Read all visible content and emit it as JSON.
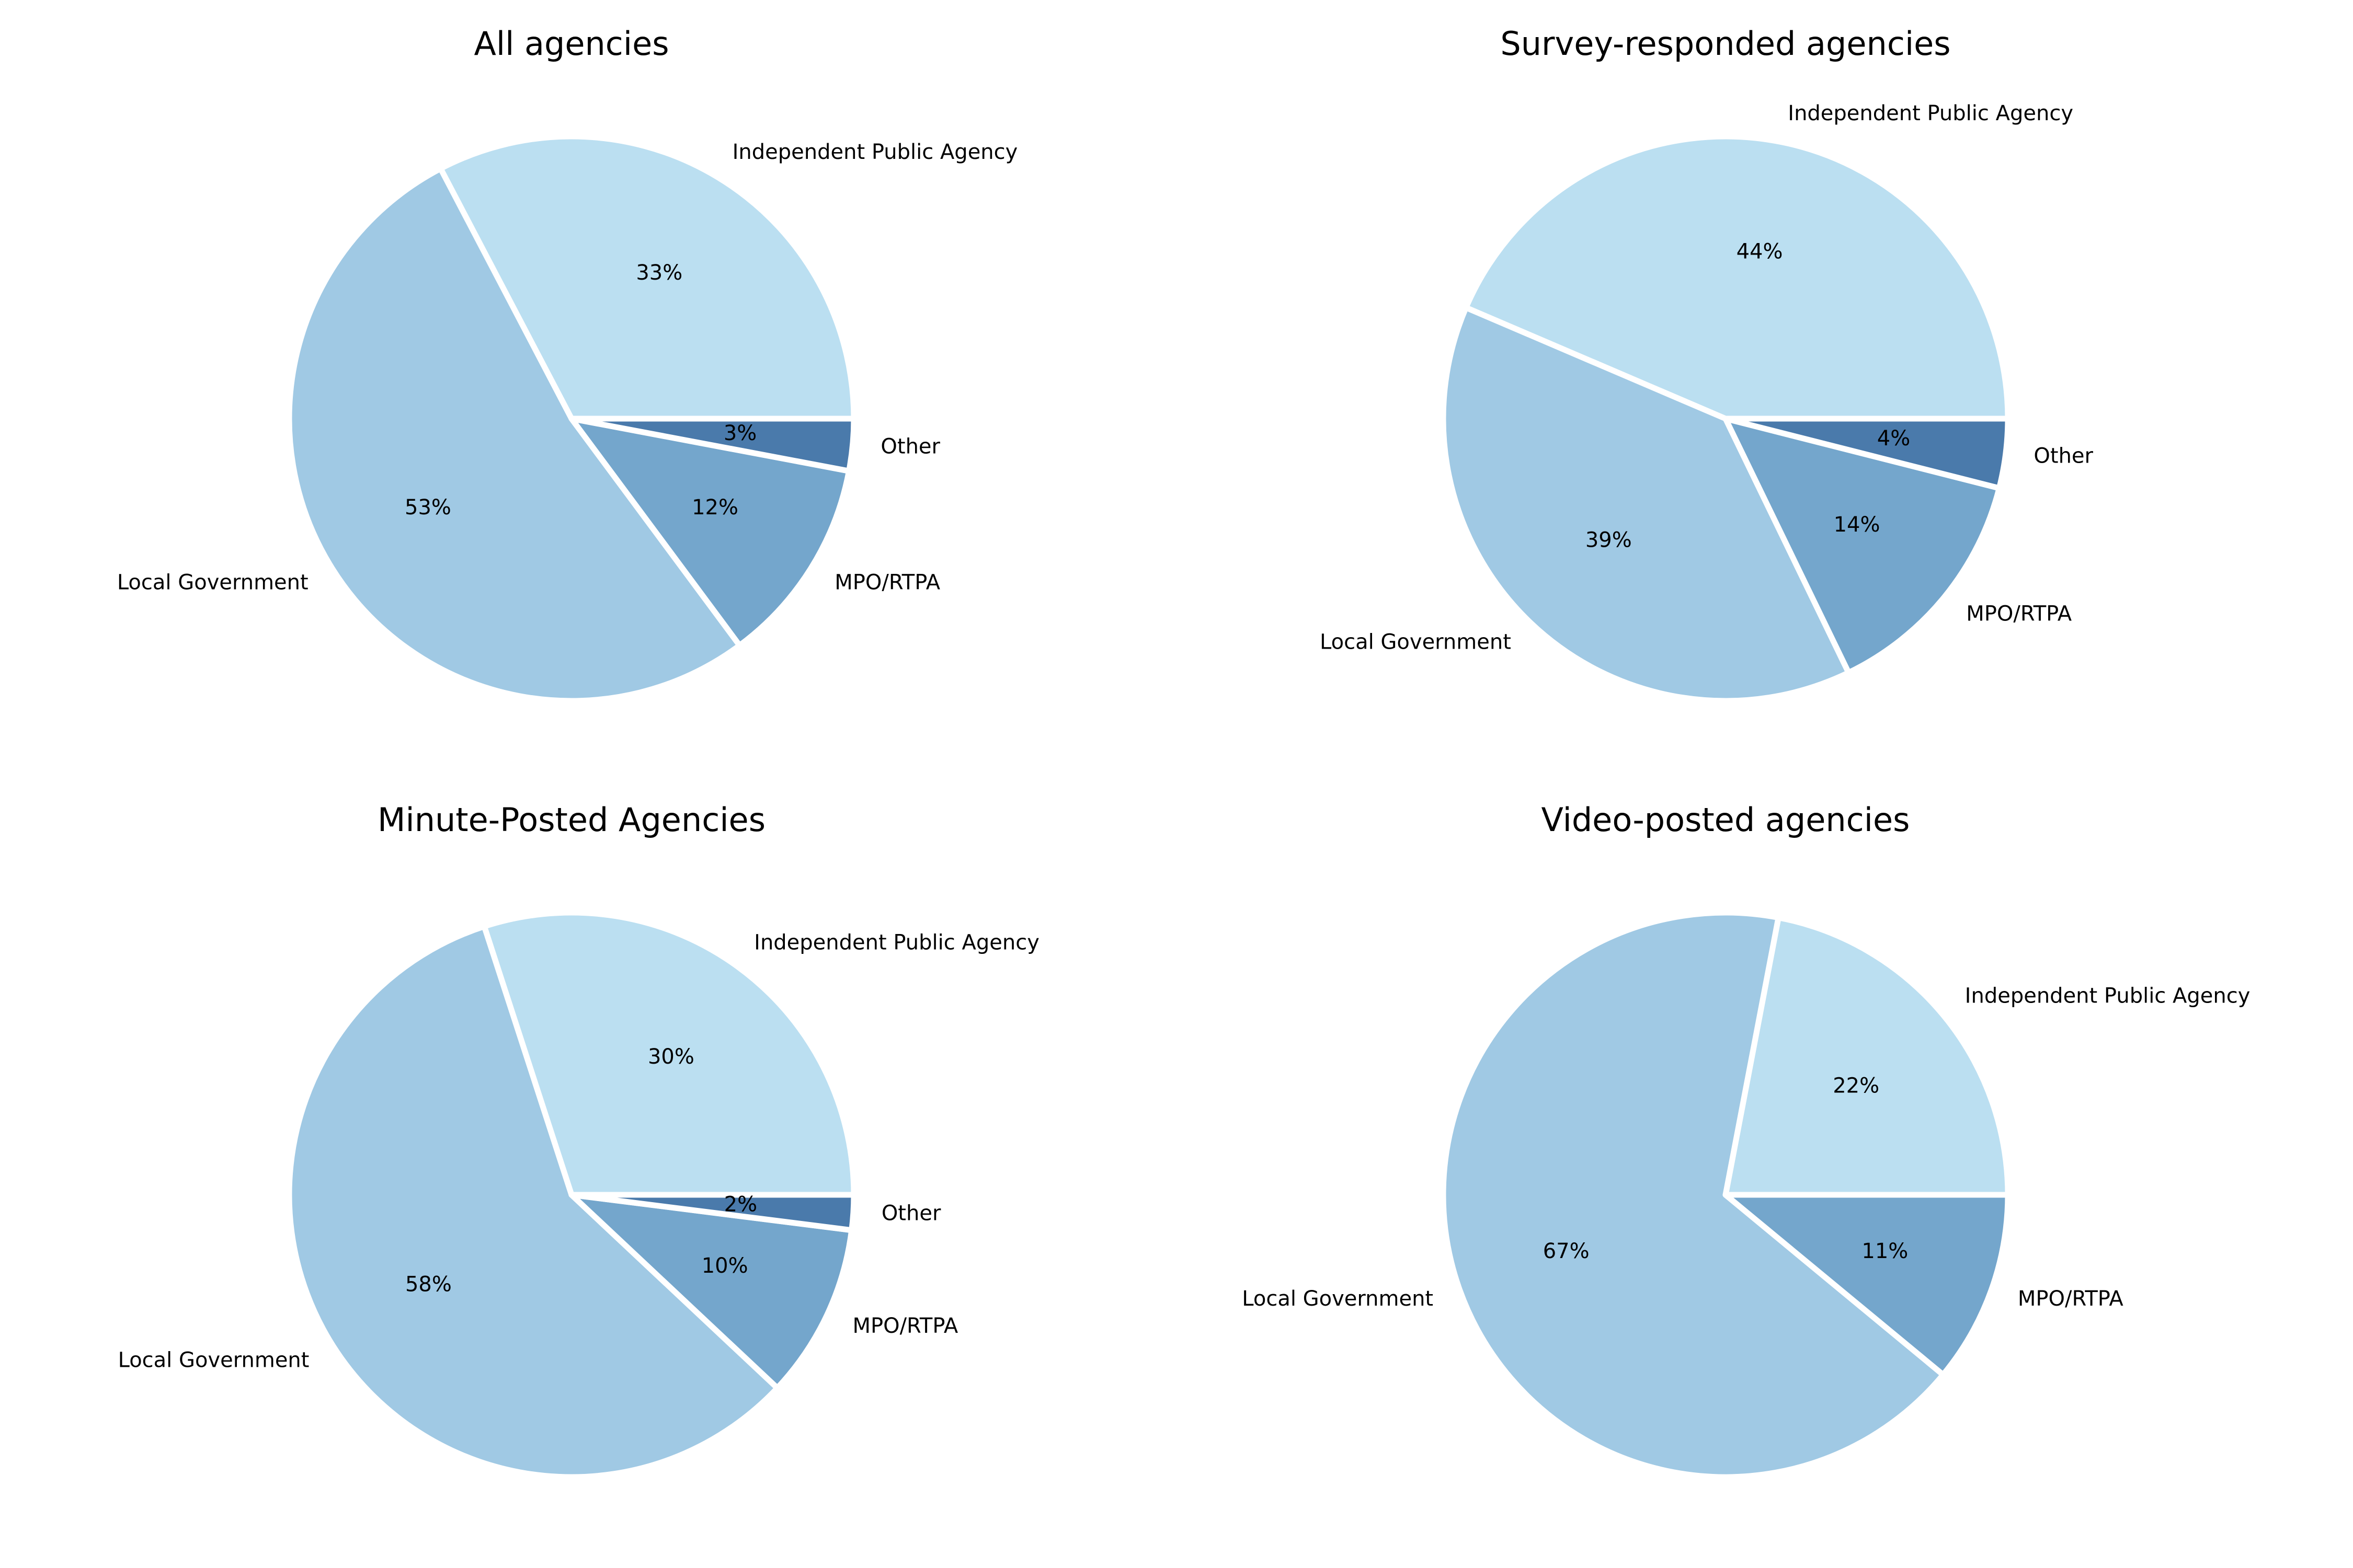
{
  "colors": {
    "Independent Public Agency": "#bbdff1",
    "Local Government": "#a0c9e4",
    "MPO/RTPA": "#74a6cc",
    "Other": "#4a7aab",
    "edge": "#ffffff",
    "background": "#ffffff"
  },
  "chart_data": [
    {
      "type": "pie",
      "title": "All agencies",
      "categories": [
        "Independent Public Agency",
        "Local Government",
        "MPO/RTPA",
        "Other"
      ],
      "values": [
        33,
        53,
        12,
        3
      ],
      "value_labels": [
        "33%",
        "53%",
        "12%",
        "3%"
      ]
    },
    {
      "type": "pie",
      "title": "Survey-responded agencies",
      "categories": [
        "Independent Public Agency",
        "Local Government",
        "MPO/RTPA",
        "Other"
      ],
      "values": [
        44,
        39,
        14,
        4
      ],
      "value_labels": [
        "44%",
        "39%",
        "14%",
        "4%"
      ]
    },
    {
      "type": "pie",
      "title": "Minute-Posted Agencies",
      "categories": [
        "Independent Public Agency",
        "Local Government",
        "MPO/RTPA",
        "Other"
      ],
      "values": [
        30,
        58,
        10,
        2
      ],
      "value_labels": [
        "30%",
        "58%",
        "10%",
        "2%"
      ]
    },
    {
      "type": "pie",
      "title": "Video-posted agencies",
      "categories": [
        "Independent Public Agency",
        "Local Government",
        "MPO/RTPA"
      ],
      "values": [
        22,
        67,
        11
      ],
      "value_labels": [
        "22%",
        "67%",
        "11%"
      ]
    }
  ]
}
